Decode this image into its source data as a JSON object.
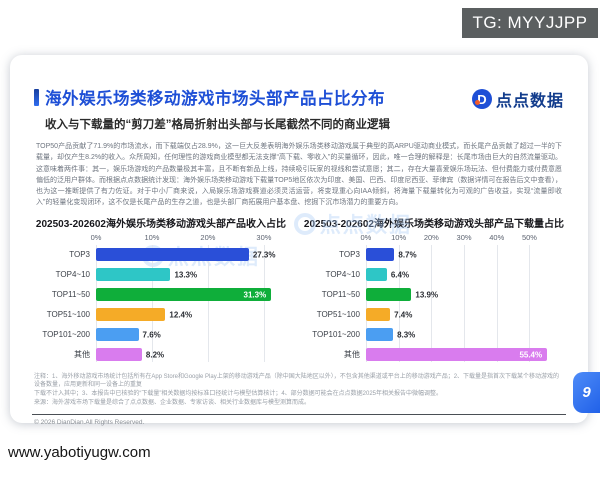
{
  "overlays": {
    "tg_badge": "TG: MYYJJPP",
    "url_watermark": "www.yabotiyugw.com",
    "page_number": "9"
  },
  "header": {
    "title": "海外娱乐场类移动游戏市场头部产品占比分布",
    "logo_text": "点点数据",
    "logo_glyph": "D",
    "subtitle": "收入与下载量的“剪刀差”格局折射出头部与长尾截然不同的商业逻辑"
  },
  "body_paragraph": "TOP50产品贡献了71.9%的市场流水，而下载端仅占28.9%，这一巨大反差表明海外娱乐场类移动游戏属于典型的高ARPU驱动商业模式，而长尾产品贡献了超过一半的下载量，却仅产生8.2%的收入。众所周知，任何理性的游戏商业模型都无法支撑“高下载、零收入”的买量循环，因此，唯一合理的解释是：长尾市场由巨大的自然流量驱动。这意味着两件事：其一，娱乐场游戏的产品数量极其丰富，且不断有新品上线，持续吸引玩家的视线和尝试意愿；其二，存在大量喜爱娱乐场玩法、但付费能力或付费意愿偏低的泛用户群体。而根据点点数据统计发现：海外娱乐场类移动游戏下载量TOP5地区依次为印度、美国、巴西、印度尼西亚、菲律宾（数据详情可在报告后文中查看），也为这一推断提供了有力佐证。对于中小厂商来说，入局娱乐场游戏赛道必须灵活运营，将变现重心向IAA倾斜，将海量下载量转化为可观的广告收益，实现“流量即收入”的轻量化变现闭环，这不仅是长尾产品的生存之道，也是头部厂商拓展用户基本盘、挖掘下沉市场潜力的重要方向。",
  "chart_data": [
    {
      "type": "bar",
      "orientation": "horizontal",
      "title": "202503-202602海外娱乐场类移动游戏头部产品收入占比",
      "categories": [
        "TOP3",
        "TOP4~10",
        "TOP11~50",
        "TOP51~100",
        "TOP101~200",
        "其他"
      ],
      "values": [
        27.3,
        13.3,
        31.3,
        12.4,
        7.6,
        8.2
      ],
      "labels": [
        "27.3%",
        "13.3%",
        "31.3%",
        "12.4%",
        "7.6%",
        "8.2%"
      ],
      "label_inside": [
        false,
        false,
        true,
        false,
        false,
        false
      ],
      "colors": [
        "#2a4fd8",
        "#2ec6c6",
        "#0fae3a",
        "#f5ab27",
        "#4b9ef2",
        "#d97cee"
      ],
      "xticks": [
        "0%",
        "10%",
        "20%",
        "30%"
      ],
      "tick_values": [
        0,
        10,
        20,
        30
      ],
      "xlim": [
        0,
        32.5
      ],
      "grid": true,
      "legend": "none"
    },
    {
      "type": "bar",
      "orientation": "horizontal",
      "title": "202503-202602海外娱乐场类移动游戏头部产品下载量占比",
      "categories": [
        "TOP3",
        "TOP4~10",
        "TOP11~50",
        "TOP51~100",
        "TOP101~200",
        "其他"
      ],
      "values": [
        8.7,
        6.4,
        13.9,
        7.4,
        8.3,
        55.4
      ],
      "labels": [
        "8.7%",
        "6.4%",
        "13.9%",
        "7.4%",
        "8.3%",
        "55.4%"
      ],
      "label_inside": [
        false,
        false,
        false,
        false,
        false,
        true
      ],
      "colors": [
        "#2a4fd8",
        "#2ec6c6",
        "#0fae3a",
        "#f5ab27",
        "#4b9ef2",
        "#d97cee"
      ],
      "xticks": [
        "0%",
        "10%",
        "20%",
        "30%",
        "40%",
        "50%"
      ],
      "tick_values": [
        0,
        10,
        20,
        30,
        40,
        50
      ],
      "xlim": [
        0,
        57.5
      ],
      "grid": true,
      "legend": "none"
    }
  ],
  "footnotes": [
    "注释：1、海外移动游戏市场统计包括所有在App Store和Google Play上架的移动游戏产品（除中国大陆地区以外），不包含其他渠道或平台上的移动游戏产品；2、下载量是指首次下载某个移动游戏的设备数量，应用更新和同一设备上的重复",
    "下载不计入其中；3、本报告中已核验的“下载量”相关数据均按标准口径统计与模型估算核计；4、部分数据可能会在点点数据2025年相关报告中微幅调整。",
    "来源：海外游戏市场下载量是综合了点点数据、企业数据、专家访谈、相关行业数据库与模型测算而成。"
  ],
  "footer": {
    "copyright": "© 2026 DianDian.All Rights Reserved."
  }
}
